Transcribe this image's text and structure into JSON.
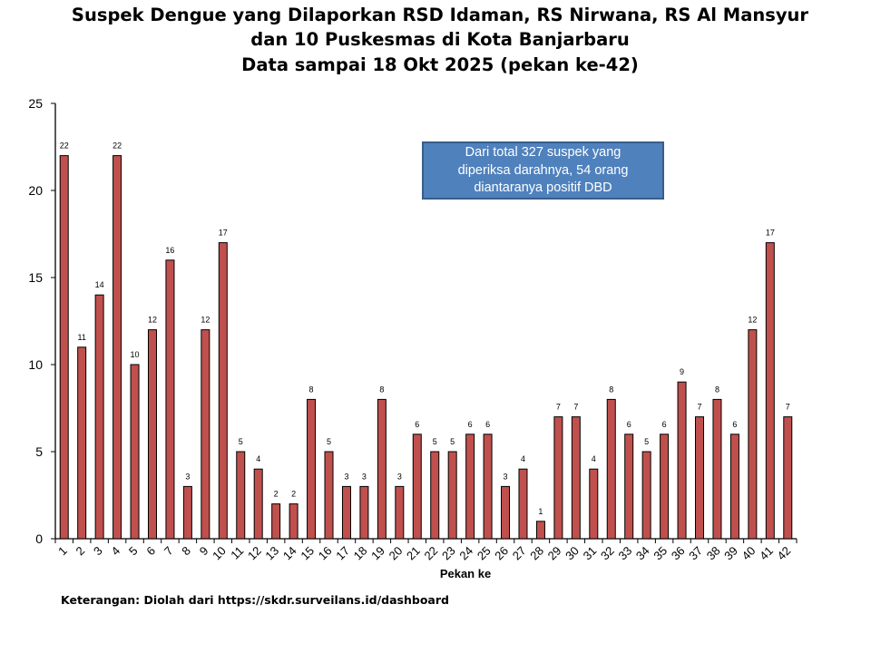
{
  "chart_data": {
    "type": "bar",
    "title": [
      "Suspek Dengue yang Dilaporkan RSD Idaman, RS Nirwana, RS Al Mansyur",
      "dan 10 Puskesmas di Kota Banjarbaru",
      "Data sampai 18 Okt 2025 (pekan ke-42)"
    ],
    "xlabel": "Pekan ke",
    "ylabel": "",
    "ylim": [
      0,
      25
    ],
    "yticks": [
      0,
      5,
      10,
      15,
      20,
      25
    ],
    "categories": [
      "1",
      "2",
      "3",
      "4",
      "5",
      "6",
      "7",
      "8",
      "9",
      "10",
      "11",
      "12",
      "13",
      "14",
      "15",
      "16",
      "17",
      "18",
      "19",
      "20",
      "21",
      "22",
      "23",
      "24",
      "25",
      "26",
      "27",
      "28",
      "29",
      "30",
      "31",
      "32",
      "33",
      "34",
      "35",
      "36",
      "37",
      "38",
      "39",
      "40",
      "41",
      "42"
    ],
    "values": [
      22,
      11,
      14,
      22,
      10,
      12,
      16,
      3,
      12,
      17,
      5,
      4,
      2,
      2,
      8,
      5,
      3,
      3,
      8,
      3,
      6,
      5,
      5,
      6,
      6,
      3,
      4,
      1,
      7,
      7,
      4,
      8,
      6,
      5,
      6,
      9,
      7,
      8,
      6,
      12,
      17,
      7
    ],
    "bar_color": "#C0504D",
    "data_labels": true,
    "grid": false,
    "annotation": "Dari total 327 suspek yang diperiksa darahnya, 54 orang diantaranya positif DBD"
  },
  "annotation_lines": [
    "Dari total 327 suspek yang",
    "diperiksa darahnya, 54 orang",
    "diantaranya positif DBD"
  ],
  "footnote": "Keterangan: Diolah dari https://skdr.surveilans.id/dashboard"
}
